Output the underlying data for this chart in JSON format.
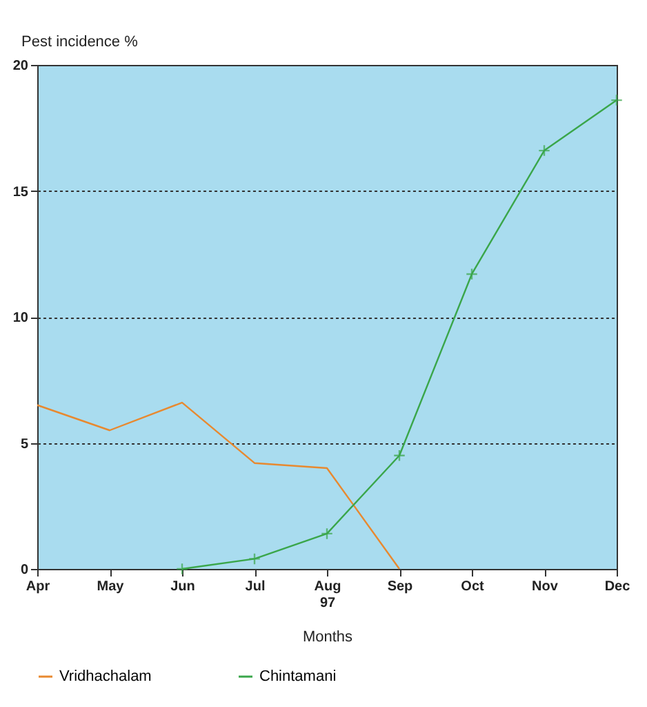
{
  "chart_data": {
    "type": "line",
    "ylabel": "Pest incidence %",
    "xlabel": "Months",
    "categories": [
      "Apr",
      "May",
      "Jun",
      "Jul",
      "Aug\n97",
      "Sep",
      "Oct",
      "Nov",
      "Dec"
    ],
    "series": [
      {
        "name": "Vridhachalam",
        "color": "#e8892f",
        "marker": "none",
        "values": [
          6.5,
          5.5,
          6.6,
          4.2,
          4.0,
          0,
          null,
          null,
          null
        ]
      },
      {
        "name": "Chintamani",
        "color": "#3aa64a",
        "marker": "cross",
        "values": [
          null,
          null,
          0,
          0.4,
          1.4,
          4.5,
          11.7,
          16.6,
          18.6
        ]
      }
    ],
    "ylim": [
      0,
      20
    ],
    "yticks": [
      0,
      5,
      10,
      15,
      20
    ],
    "grid": "y",
    "legend": "bottom"
  }
}
